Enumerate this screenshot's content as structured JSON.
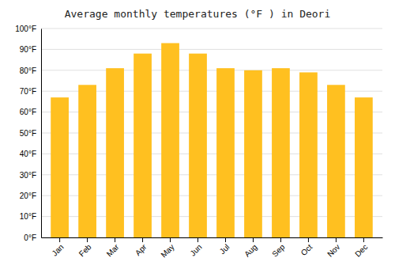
{
  "chart_data": {
    "type": "bar",
    "title": "Average monthly temperatures (°F ) in Deori",
    "categories": [
      "Jan",
      "Feb",
      "Mar",
      "Apr",
      "May",
      "Jun",
      "Jul",
      "Aug",
      "Sep",
      "Oct",
      "Nov",
      "Dec"
    ],
    "values": [
      67,
      73,
      81,
      88,
      93,
      88,
      81,
      80,
      81,
      79,
      73,
      67
    ],
    "color": "#FFC020",
    "ylim": [
      0,
      100
    ],
    "yticks": [
      {
        "value": 0,
        "label": "0°F"
      },
      {
        "value": 10,
        "label": "10°F"
      },
      {
        "value": 20,
        "label": "20°F"
      },
      {
        "value": 30,
        "label": "30°F"
      },
      {
        "value": 40,
        "label": "40°F"
      },
      {
        "value": 50,
        "label": "50°F"
      },
      {
        "value": 60,
        "label": "60°F"
      },
      {
        "value": 70,
        "label": "70°F"
      },
      {
        "value": 80,
        "label": "80°F"
      },
      {
        "value": 90,
        "label": "90°F"
      },
      {
        "value": 100,
        "label": "100°F"
      }
    ],
    "grid": true
  }
}
